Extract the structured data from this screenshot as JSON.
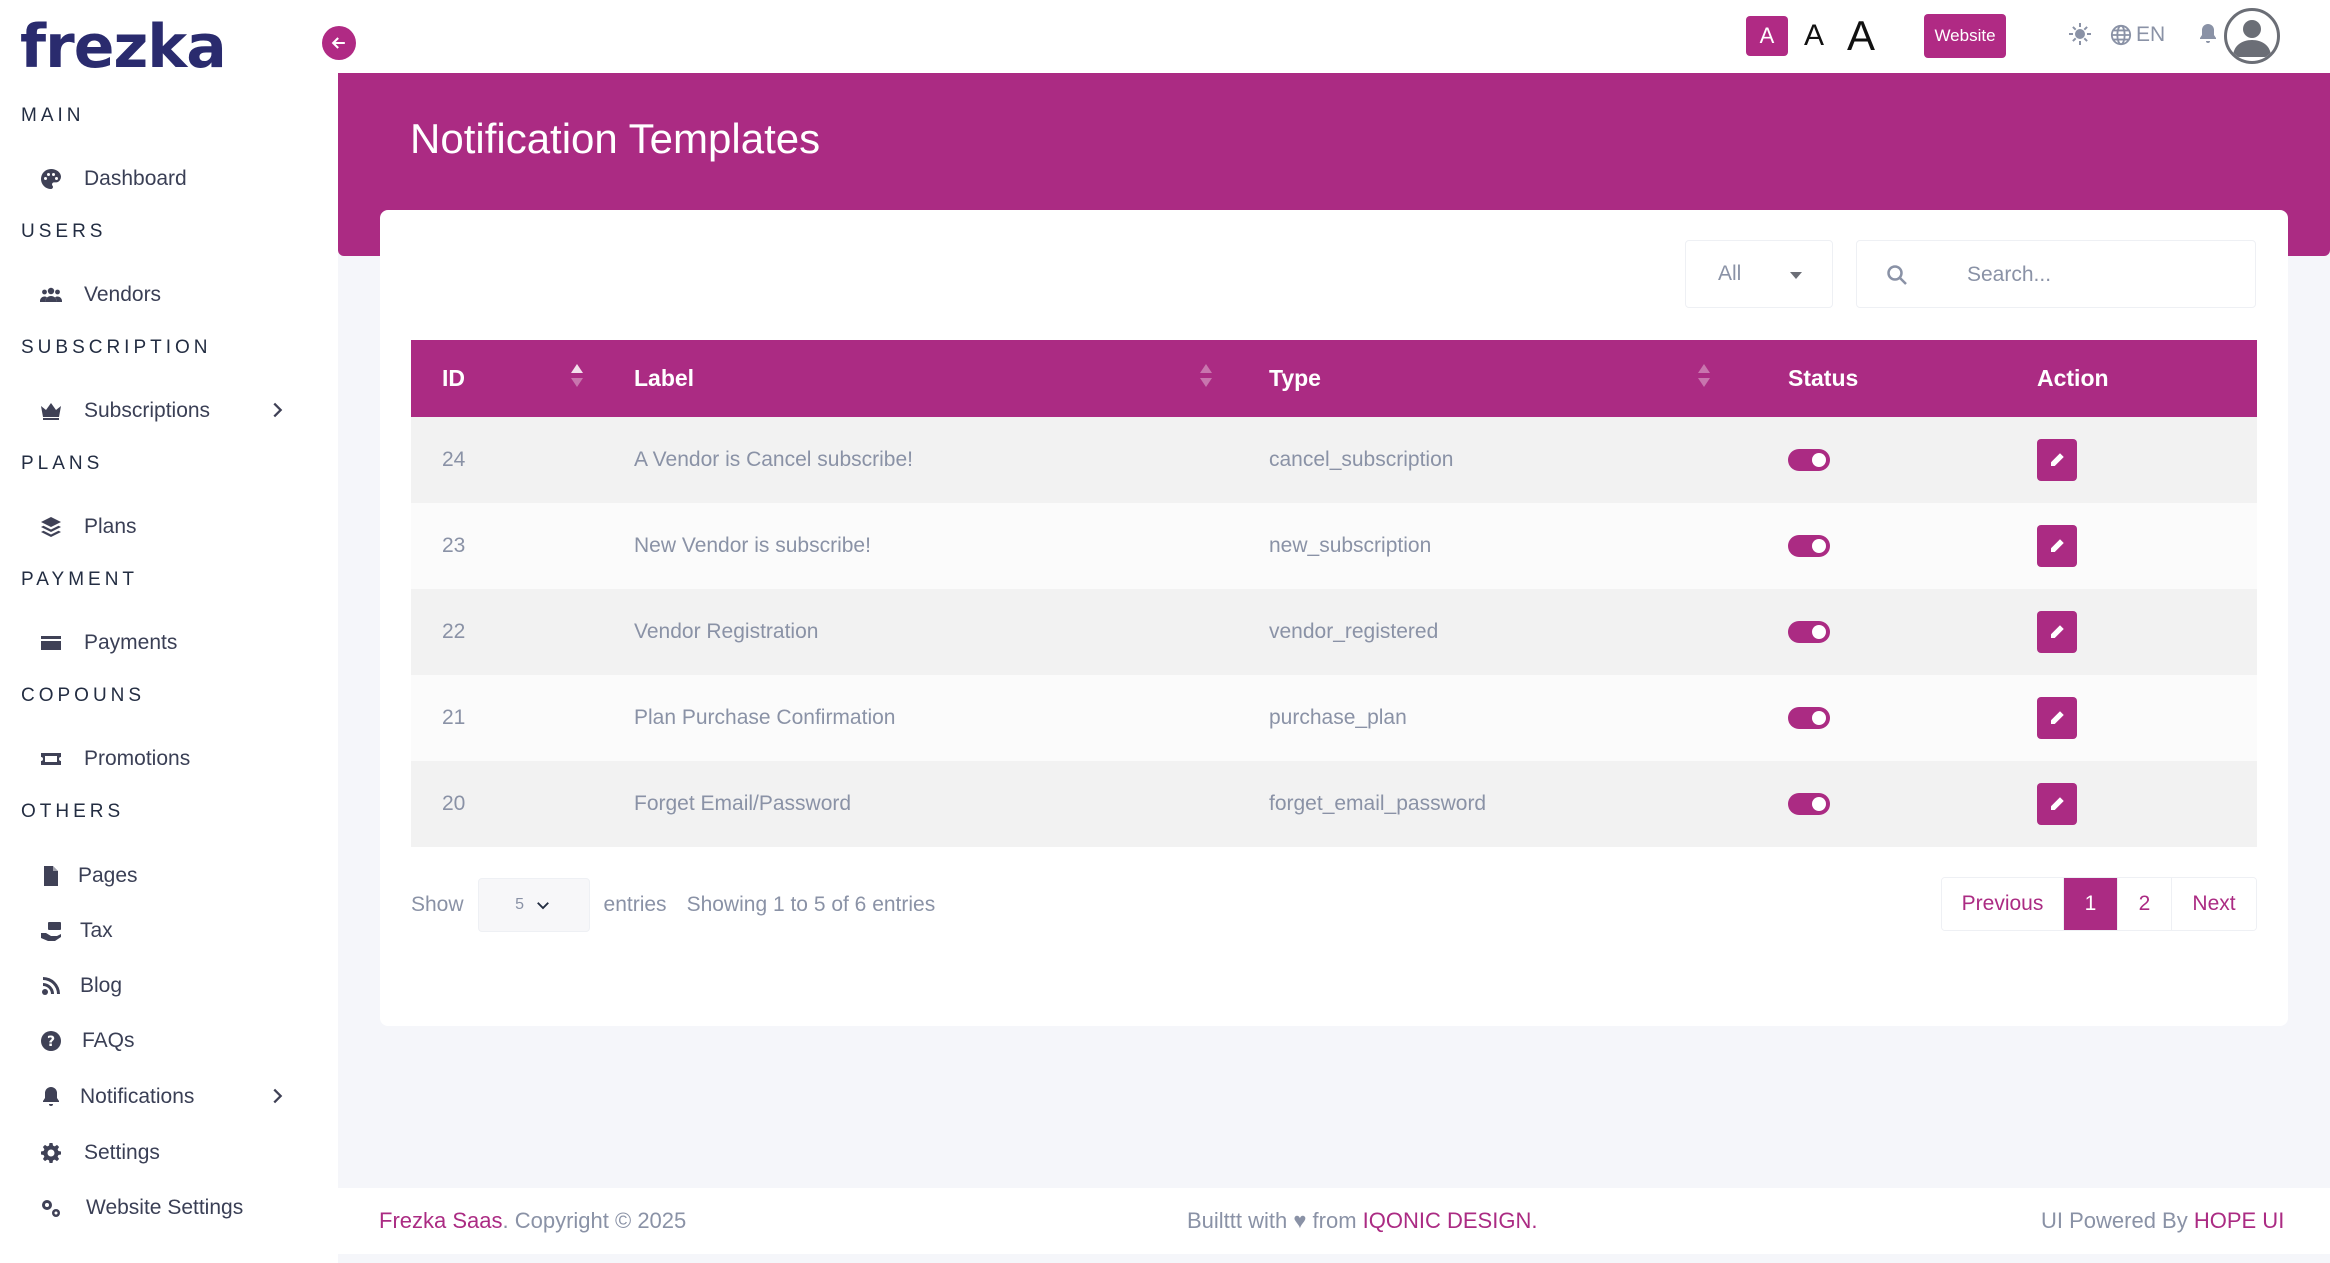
{
  "sidebar": {
    "logo_text": "frezka",
    "sections": [
      {
        "title": "MAIN",
        "items": [
          {
            "label": "Dashboard",
            "icon": "palette-icon"
          }
        ]
      },
      {
        "title": "USERS",
        "items": [
          {
            "label": "Vendors",
            "icon": "users-icon"
          }
        ]
      },
      {
        "title": "SUBSCRIPTION",
        "items": [
          {
            "label": "Subscriptions",
            "icon": "crown-icon",
            "has_children": true
          }
        ]
      },
      {
        "title": "PLANS",
        "items": [
          {
            "label": "Plans",
            "icon": "layers-icon"
          }
        ]
      },
      {
        "title": "PAYMENT",
        "items": [
          {
            "label": "Payments",
            "icon": "credit-card-icon"
          }
        ]
      },
      {
        "title": "COPOUNS",
        "items": [
          {
            "label": "Promotions",
            "icon": "ticket-icon"
          }
        ]
      },
      {
        "title": "OTHERS",
        "items": [
          {
            "label": "Pages",
            "icon": "file-icon"
          },
          {
            "label": "Tax",
            "icon": "money-hand-icon"
          },
          {
            "label": "Blog",
            "icon": "blog-icon"
          },
          {
            "label": "FAQs",
            "icon": "question-circle-icon"
          },
          {
            "label": "Notifications",
            "icon": "bell-icon",
            "has_children": true
          },
          {
            "label": "Settings",
            "icon": "gear-icon"
          },
          {
            "label": "Website Settings",
            "icon": "gears-icon"
          }
        ]
      }
    ]
  },
  "topbar": {
    "font_small": "A",
    "font_medium": "A",
    "font_large": "A",
    "website_label": "Website",
    "language": "EN"
  },
  "page": {
    "title": "Notification Templates"
  },
  "filters": {
    "status_selected": "All",
    "search_placeholder": "Search..."
  },
  "table": {
    "columns": [
      "ID",
      "Label",
      "Type",
      "Status",
      "Action"
    ],
    "rows": [
      {
        "id": "24",
        "label": "A Vendor is Cancel subscribe!",
        "type": "cancel_subscription",
        "status": true
      },
      {
        "id": "23",
        "label": "New Vendor is subscribe!",
        "type": "new_subscription",
        "status": true
      },
      {
        "id": "22",
        "label": "Vendor Registration",
        "type": "vendor_registered",
        "status": true
      },
      {
        "id": "21",
        "label": "Plan Purchase Confirmation",
        "type": "purchase_plan",
        "status": true
      },
      {
        "id": "20",
        "label": "Forget Email/Password",
        "type": "forget_email_password",
        "status": true
      }
    ]
  },
  "table_footer": {
    "show_label": "Show",
    "entries_value": "5",
    "entries_label": "entries",
    "info": "Showing 1 to 5 of 6 entries",
    "pagination": {
      "previous": "Previous",
      "pages": [
        "1",
        "2"
      ],
      "active_page": "1",
      "next": "Next"
    }
  },
  "footer": {
    "brand": "Frezka Saas",
    "copyright": ". Copyright © 2025",
    "built_prefix": "Builttt with ♥ from ",
    "built_brand": "IQONIC DESIGN.",
    "powered_prefix": "UI Powered By ",
    "powered_brand": "HOPE UI"
  },
  "colors": {
    "accent": "#ab2b83",
    "logo": "#2a2b6e",
    "text_muted": "#8a92a6"
  }
}
